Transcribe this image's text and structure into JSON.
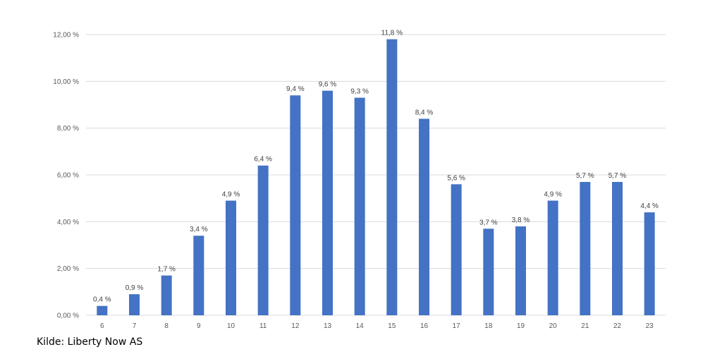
{
  "source_note": "Kilde: Liberty Now AS",
  "colors": {
    "bar": "#4472C4",
    "grid": "#D9D9D9",
    "text": "#595959",
    "label": "#404040"
  },
  "chart_data": {
    "type": "bar",
    "title": "",
    "xlabel": "",
    "ylabel": "",
    "ylim": [
      0,
      12
    ],
    "yticks": [
      0,
      2,
      4,
      6,
      8,
      10,
      12
    ],
    "ytick_labels": [
      "0,00 %",
      "2,00 %",
      "4,00 %",
      "6,00 %",
      "8,00 %",
      "10,00 %",
      "12,00 %"
    ],
    "grid": true,
    "legend": "none",
    "categories": [
      "6",
      "7",
      "8",
      "9",
      "10",
      "11",
      "12",
      "13",
      "14",
      "15",
      "16",
      "17",
      "18",
      "19",
      "20",
      "21",
      "22",
      "23"
    ],
    "values": [
      0.4,
      0.9,
      1.7,
      3.4,
      4.9,
      6.4,
      9.4,
      9.6,
      9.3,
      11.8,
      8.4,
      5.6,
      3.7,
      3.8,
      4.9,
      5.7,
      5.7,
      4.4
    ],
    "data_labels": [
      "0,4 %",
      "0,9 %",
      "1,7 %",
      "3,4 %",
      "4,9 %",
      "6,4 %",
      "9,4 %",
      "9,6 %",
      "9,3 %",
      "11,8 %",
      "8,4 %",
      "5,6 %",
      "3,7 %",
      "3,8 %",
      "4,9 %",
      "5,7 %",
      "5,7 %",
      "4,4 %"
    ]
  }
}
